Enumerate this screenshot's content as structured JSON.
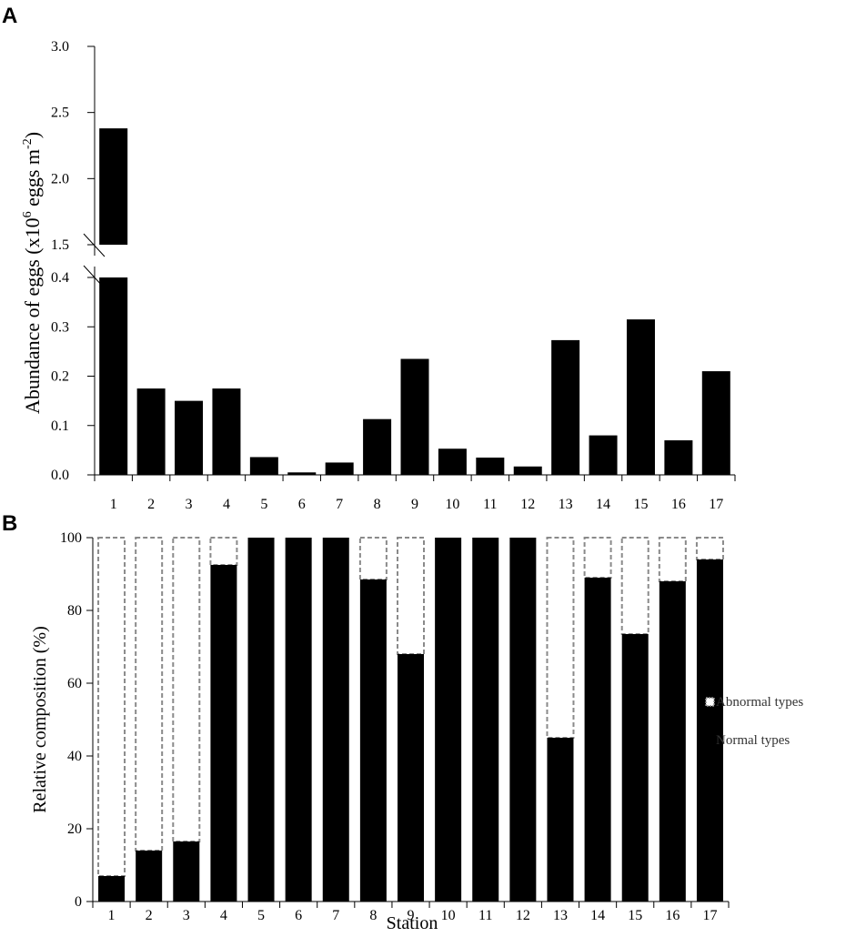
{
  "panels": {
    "a_label": "A",
    "b_label": "B"
  },
  "chart_data": [
    {
      "type": "bar",
      "panel": "A",
      "categories": [
        "1",
        "2",
        "3",
        "4",
        "5",
        "6",
        "7",
        "8",
        "9",
        "10",
        "11",
        "12",
        "13",
        "14",
        "15",
        "16",
        "17"
      ],
      "values": [
        2.38,
        0.175,
        0.15,
        0.175,
        0.036,
        0.005,
        0.025,
        0.113,
        0.235,
        0.053,
        0.035,
        0.017,
        0.273,
        0.08,
        0.315,
        0.07,
        0.21
      ],
      "ylabel_main": "Abundance of eggs (x10",
      "ylabel_exp1": "6",
      "ylabel_mid": " eggs m",
      "ylabel_exp2": "-2",
      "ylabel_end": ")",
      "xlabel": "",
      "axis_break": {
        "lower_range": [
          0,
          0.4
        ],
        "upper_range": [
          1.5,
          3.0
        ]
      },
      "yticks_lower": [
        "0.0",
        "0.1",
        "0.2",
        "0.3",
        "0.4"
      ],
      "yticks_upper": [
        "1.5",
        "2.0",
        "2.5",
        "3.0"
      ],
      "bar_color": "#000000"
    },
    {
      "type": "bar",
      "panel": "B",
      "stacked": true,
      "categories": [
        "1",
        "2",
        "3",
        "4",
        "5",
        "6",
        "7",
        "8",
        "9",
        "10",
        "11",
        "12",
        "13",
        "14",
        "15",
        "16",
        "17"
      ],
      "series": [
        {
          "name": "Normal types",
          "values": [
            7,
            14,
            16.5,
            92.5,
            100,
            100,
            100,
            88.5,
            68,
            100,
            100,
            100,
            45,
            89,
            73.5,
            88,
            94
          ]
        },
        {
          "name": "Abnormal types",
          "values": [
            93,
            86,
            83.5,
            7.5,
            0,
            0,
            0,
            11.5,
            32,
            0,
            0,
            0,
            55,
            11,
            26.5,
            12,
            6
          ]
        }
      ],
      "ylabel": "Relative composition (%)",
      "xlabel": "Station",
      "ylim": [
        0,
        100
      ],
      "yticks": [
        "0",
        "20",
        "40",
        "60",
        "80",
        "100"
      ],
      "legend_position": "right",
      "colors": {
        "normal": "#000000",
        "abnormal_border": "#8a8a8a"
      }
    }
  ]
}
